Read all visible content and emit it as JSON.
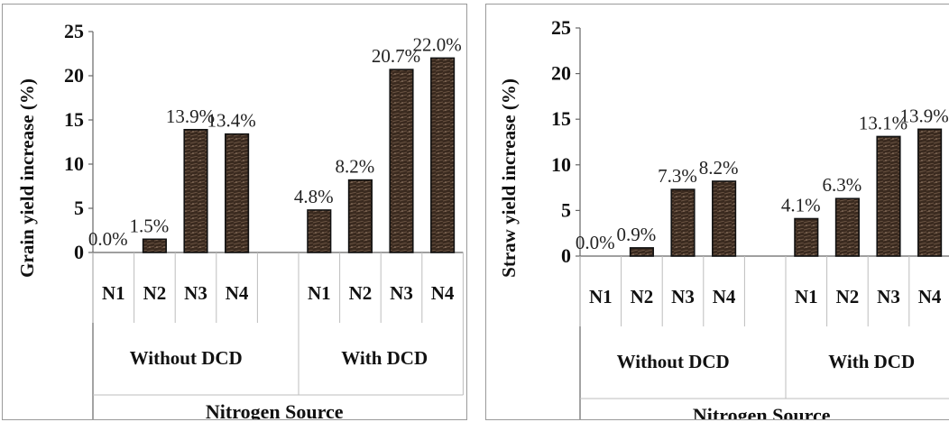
{
  "chart_data": [
    {
      "type": "bar",
      "ylabel": "Grain yield increase (%)",
      "xlabel": "Nitrogen Source",
      "ylim": [
        0,
        25
      ],
      "yticks": [
        0,
        5,
        10,
        15,
        20,
        25
      ],
      "grid": false,
      "groups": [
        {
          "label": "Without DCD",
          "categories": [
            "N1",
            "N2",
            "N3",
            "N4"
          ],
          "values": [
            0.0,
            1.5,
            13.9,
            13.4
          ],
          "labels": [
            "0.0%",
            "1.5%",
            "13.9%",
            "13.4%"
          ]
        },
        {
          "label": "With DCD",
          "categories": [
            "N1",
            "N2",
            "N3",
            "N4"
          ],
          "values": [
            4.8,
            8.2,
            20.7,
            22.0
          ],
          "labels": [
            "4.8%",
            "8.2%",
            "20.7%",
            "22.0%"
          ]
        }
      ],
      "bar_color": "#3a2a1f"
    },
    {
      "type": "bar",
      "ylabel": "Straw yield increase (%)",
      "xlabel": "Nitrogen Source",
      "ylim": [
        0,
        25
      ],
      "yticks": [
        0,
        5,
        10,
        15,
        20,
        25
      ],
      "grid": false,
      "groups": [
        {
          "label": "Without DCD",
          "categories": [
            "N1",
            "N2",
            "N3",
            "N4"
          ],
          "values": [
            0.0,
            0.9,
            7.3,
            8.2
          ],
          "labels": [
            "0.0%",
            "0.9%",
            "7.3%",
            "8.2%"
          ]
        },
        {
          "label": "With DCD",
          "categories": [
            "N1",
            "N2",
            "N3",
            "N4"
          ],
          "values": [
            4.1,
            6.3,
            13.1,
            13.9
          ],
          "labels": [
            "4.1%",
            "6.3%",
            "13.1%",
            "13.9%"
          ]
        }
      ],
      "bar_color": "#3a2a1f"
    }
  ]
}
